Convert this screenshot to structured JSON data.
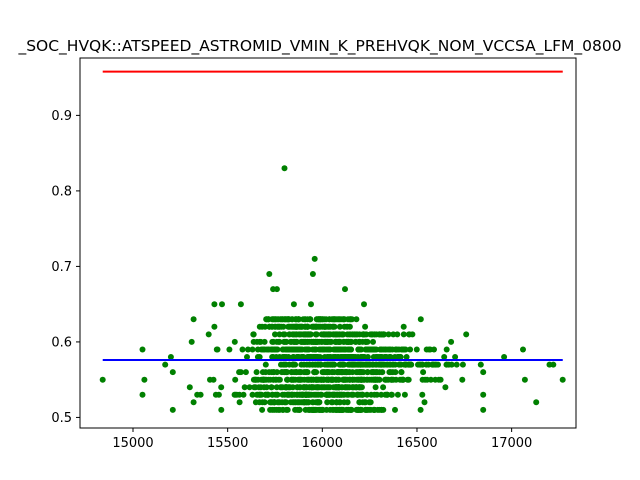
{
  "chart_data": {
    "type": "scatter",
    "title": "_SOC_HVQK::ATSPEED_ASTROMID_VMIN_K_PREHVQK_NOM_VCCSA_LFM_0800",
    "xlabel": "",
    "ylabel": "",
    "xlim": [
      14720,
      17340
    ],
    "ylim": [
      0.486,
      0.976
    ],
    "xticks": [
      15000,
      15500,
      16000,
      16500,
      17000
    ],
    "yticks": [
      0.5,
      0.6,
      0.7,
      0.8,
      0.9
    ],
    "grid": false,
    "lines": [
      {
        "color": "#ff0000",
        "x": [
          14840,
          17270
        ],
        "y": [
          0.958,
          0.958
        ]
      },
      {
        "color": "#0000ff",
        "x": [
          14840,
          17270
        ],
        "y": [
          0.576,
          0.576
        ]
      }
    ],
    "scatter": {
      "color": "#008000",
      "bands": [
        {
          "y": 0.51,
          "x_min": 15210,
          "x_max": 16850,
          "n": 70
        },
        {
          "y": 0.52,
          "x_min": 15320,
          "x_max": 16540,
          "n": 50
        },
        {
          "y": 0.53,
          "x_min": 15050,
          "x_max": 16850,
          "n": 110
        },
        {
          "y": 0.54,
          "x_min": 15300,
          "x_max": 16650,
          "n": 80
        },
        {
          "y": 0.55,
          "x_min": 15060,
          "x_max": 17070,
          "n": 130
        },
        {
          "y": 0.56,
          "x_min": 15210,
          "x_max": 16850,
          "n": 80
        },
        {
          "y": 0.57,
          "x_min": 15170,
          "x_max": 17200,
          "n": 120
        },
        {
          "y": 0.58,
          "x_min": 15200,
          "x_max": 16960,
          "n": 90
        },
        {
          "y": 0.59,
          "x_min": 15050,
          "x_max": 17060,
          "n": 130
        },
        {
          "y": 0.6,
          "x_min": 15310,
          "x_max": 16680,
          "n": 70
        },
        {
          "y": 0.61,
          "x_min": 15400,
          "x_max": 16760,
          "n": 90
        },
        {
          "y": 0.62,
          "x_min": 15430,
          "x_max": 16430,
          "n": 50
        },
        {
          "y": 0.63,
          "x_min": 15320,
          "x_max": 16520,
          "n": 60
        }
      ],
      "points": [
        [
          14840,
          0.55
        ],
        [
          17270,
          0.55
        ],
        [
          17220,
          0.57
        ],
        [
          17130,
          0.52
        ],
        [
          15430,
          0.65
        ],
        [
          15470,
          0.65
        ],
        [
          15570,
          0.65
        ],
        [
          15720,
          0.69
        ],
        [
          15740,
          0.67
        ],
        [
          15760,
          0.67
        ],
        [
          15850,
          0.65
        ],
        [
          15940,
          0.65
        ],
        [
          15950,
          0.69
        ],
        [
          15960,
          0.71
        ],
        [
          16120,
          0.67
        ],
        [
          16220,
          0.65
        ],
        [
          15800,
          0.83
        ]
      ]
    }
  }
}
